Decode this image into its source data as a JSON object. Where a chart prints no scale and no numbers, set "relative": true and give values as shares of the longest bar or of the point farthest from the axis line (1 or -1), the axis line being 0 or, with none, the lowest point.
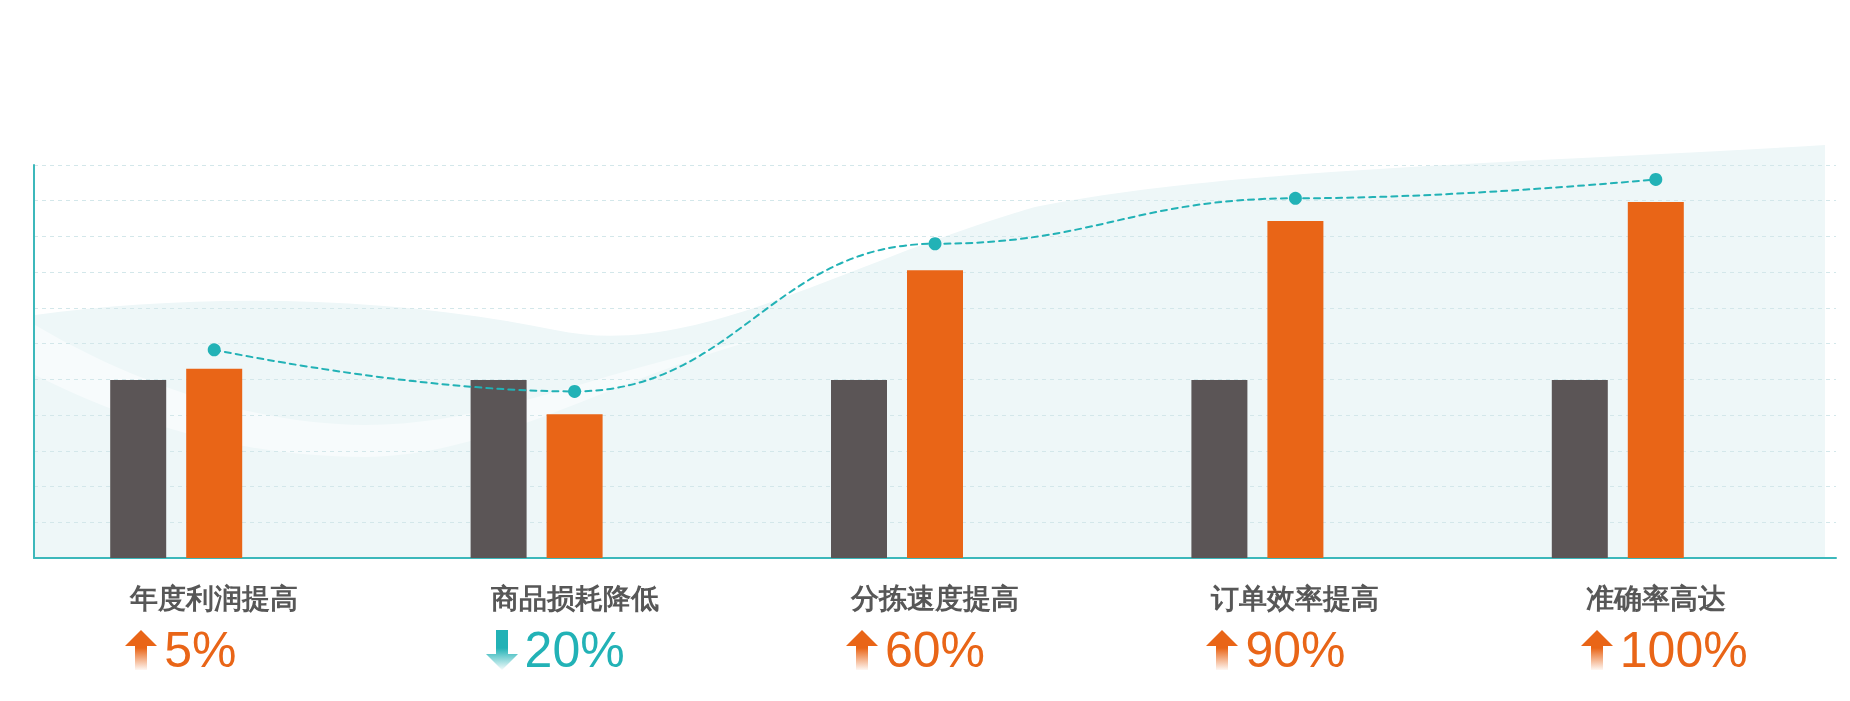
{
  "chart_data": {
    "type": "bar",
    "relative": true,
    "categories": [
      "年度利润提高",
      "商品损耗降低",
      "分拣速度提高",
      "订单效率提高",
      "准确率高达"
    ],
    "series": [
      {
        "color": "#5b5556",
        "values": [
          0.47,
          0.47,
          0.47,
          0.47,
          0.47
        ]
      },
      {
        "color": "#e96517",
        "values": [
          0.5,
          0.38,
          0.76,
          0.89,
          0.94
        ]
      },
      {
        "type": "line",
        "color": "#22b2b6",
        "values": [
          0.55,
          0.44,
          0.83,
          0.95,
          1.0
        ]
      }
    ],
    "marker": "circle",
    "line_style": "dashed",
    "grid": "y",
    "annotations": [
      "5%",
      "20%",
      "60%",
      "90%",
      "100%"
    ]
  }
}
